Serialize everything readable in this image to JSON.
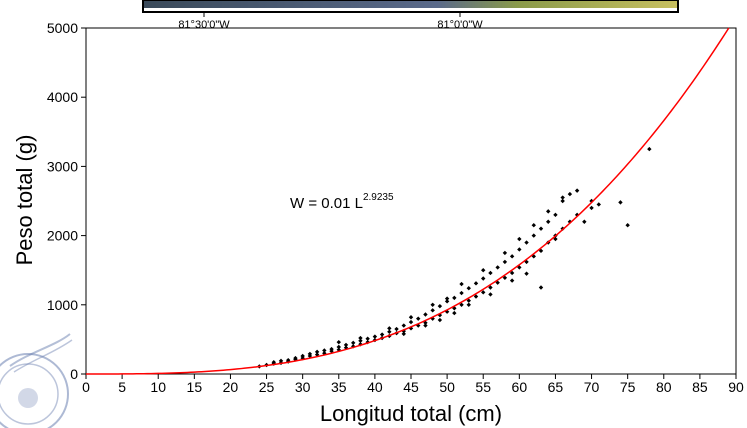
{
  "map_strip": {
    "lon_labels": [
      "81°30'0\"W",
      "81°0'0\"W"
    ]
  },
  "chart_data": {
    "type": "scatter",
    "xlabel": "Longitud total (cm)",
    "ylabel": "Peso total (g)",
    "xlim": [
      0,
      90
    ],
    "ylim": [
      0,
      5000
    ],
    "x_ticks": [
      0,
      5,
      10,
      15,
      20,
      25,
      30,
      35,
      40,
      45,
      50,
      55,
      60,
      65,
      70,
      75,
      80,
      85,
      90
    ],
    "y_ticks": [
      0,
      1000,
      2000,
      3000,
      4000,
      5000
    ],
    "grid": false,
    "annotation": {
      "text": "W = 0.01 L",
      "exponent": "2.9235"
    },
    "fit_curve": {
      "equation_a": 0.01,
      "equation_b": 2.9235,
      "color": "#ff0000"
    },
    "points": [
      [
        24,
        110
      ],
      [
        25,
        130
      ],
      [
        26,
        150
      ],
      [
        26,
        170
      ],
      [
        27,
        160
      ],
      [
        27,
        190
      ],
      [
        28,
        180
      ],
      [
        28,
        200
      ],
      [
        29,
        210
      ],
      [
        29,
        230
      ],
      [
        30,
        230
      ],
      [
        30,
        260
      ],
      [
        31,
        260
      ],
      [
        31,
        290
      ],
      [
        32,
        280
      ],
      [
        32,
        320
      ],
      [
        33,
        300
      ],
      [
        33,
        340
      ],
      [
        34,
        330
      ],
      [
        34,
        360
      ],
      [
        35,
        350
      ],
      [
        35,
        390
      ],
      [
        36,
        380
      ],
      [
        36,
        420
      ],
      [
        37,
        400
      ],
      [
        37,
        450
      ],
      [
        38,
        430
      ],
      [
        38,
        480
      ],
      [
        39,
        460
      ],
      [
        39,
        510
      ],
      [
        40,
        490
      ],
      [
        40,
        540
      ],
      [
        41,
        520
      ],
      [
        41,
        570
      ],
      [
        42,
        550
      ],
      [
        42,
        610
      ],
      [
        43,
        590
      ],
      [
        43,
        650
      ],
      [
        44,
        620
      ],
      [
        44,
        700
      ],
      [
        45,
        660
      ],
      [
        45,
        750
      ],
      [
        46,
        700
      ],
      [
        46,
        800
      ],
      [
        47,
        740
      ],
      [
        47,
        860
      ],
      [
        48,
        800
      ],
      [
        48,
        920
      ],
      [
        49,
        850
      ],
      [
        49,
        980
      ],
      [
        50,
        900
      ],
      [
        50,
        1050
      ],
      [
        51,
        950
      ],
      [
        51,
        1100
      ],
      [
        52,
        1000
      ],
      [
        52,
        1170
      ],
      [
        53,
        1060
      ],
      [
        53,
        1240
      ],
      [
        54,
        1120
      ],
      [
        54,
        1310
      ],
      [
        55,
        1180
      ],
      [
        55,
        1380
      ],
      [
        56,
        1250
      ],
      [
        56,
        1460
      ],
      [
        57,
        1320
      ],
      [
        57,
        1540
      ],
      [
        58,
        1390
      ],
      [
        58,
        1620
      ],
      [
        59,
        1460
      ],
      [
        59,
        1700
      ],
      [
        60,
        1540
      ],
      [
        60,
        1800
      ],
      [
        61,
        1620
      ],
      [
        61,
        1900
      ],
      [
        62,
        1700
      ],
      [
        62,
        2000
      ],
      [
        63,
        1780
      ],
      [
        63,
        2100
      ],
      [
        63,
        1250
      ],
      [
        64,
        1900
      ],
      [
        64,
        2200
      ],
      [
        65,
        2000
      ],
      [
        65,
        2300
      ],
      [
        66,
        2100
      ],
      [
        66,
        2500
      ],
      [
        67,
        2200
      ],
      [
        67,
        2600
      ],
      [
        68,
        2300
      ],
      [
        68,
        2650
      ],
      [
        69,
        2200
      ],
      [
        70,
        2400
      ],
      [
        70,
        2500
      ],
      [
        71,
        2450
      ],
      [
        74,
        2480
      ],
      [
        75,
        2150
      ],
      [
        78,
        3250
      ],
      [
        35,
        460
      ],
      [
        38,
        520
      ],
      [
        42,
        660
      ],
      [
        45,
        820
      ],
      [
        48,
        1000
      ],
      [
        50,
        1090
      ],
      [
        52,
        1300
      ],
      [
        55,
        1500
      ],
      [
        58,
        1750
      ],
      [
        60,
        1950
      ],
      [
        62,
        2150
      ],
      [
        64,
        2350
      ],
      [
        66,
        2550
      ],
      [
        44,
        580
      ],
      [
        47,
        700
      ],
      [
        49,
        780
      ],
      [
        51,
        880
      ],
      [
        53,
        1000
      ],
      [
        56,
        1150
      ],
      [
        59,
        1350
      ],
      [
        61,
        1450
      ],
      [
        65,
        1950
      ]
    ],
    "point_color": "#000000"
  }
}
